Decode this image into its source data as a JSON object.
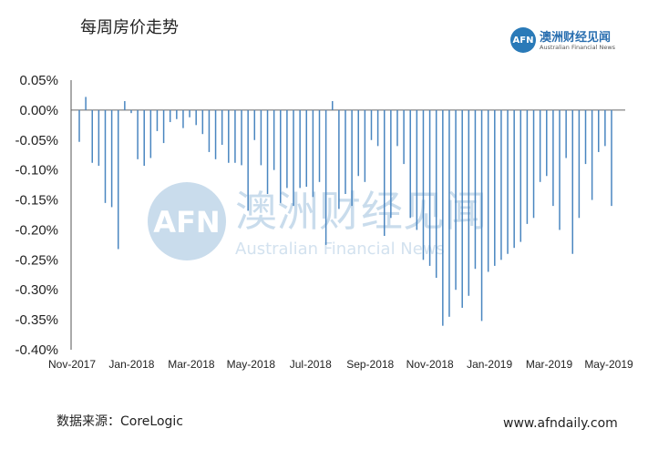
{
  "header": {
    "title": "每周房价走势"
  },
  "logo": {
    "mark": "AFN",
    "name_cn": "澳洲财经见闻",
    "name_en": "Australian Financial News"
  },
  "watermark": {
    "mark": "AFN",
    "name_cn": "澳洲财经见闻",
    "name_en": "Australian Financial News"
  },
  "footer": {
    "source": "数据来源：CoreLogic",
    "website": "www.afndaily.com"
  },
  "chart_data": {
    "type": "bar",
    "title": "每周房价走势",
    "xlabel": "",
    "ylabel": "",
    "ylim": [
      -0.4,
      0.05
    ],
    "y_ticks": [
      0.05,
      0.0,
      -0.05,
      -0.1,
      -0.15,
      -0.2,
      -0.25,
      -0.3,
      -0.35,
      -0.4
    ],
    "y_tick_labels": [
      "0.05%",
      "0.00%",
      "-0.05%",
      "-0.10%",
      "-0.15%",
      "-0.20%",
      "-0.25%",
      "-0.30%",
      "-0.35%",
      "-0.40%"
    ],
    "x_tick_labels": [
      "Nov-2017",
      "Jan-2018",
      "Mar-2018",
      "May-2018",
      "Jul-2018",
      "Sep-2018",
      "Nov-2018",
      "Jan-2019",
      "Mar-2019",
      "May-2019"
    ],
    "bar_color": "#4a86c0",
    "grid": false,
    "values": [
      -0.053,
      0.022,
      -0.088,
      -0.093,
      -0.155,
      -0.162,
      -0.232,
      0.015,
      -0.005,
      -0.082,
      -0.093,
      -0.08,
      -0.035,
      -0.055,
      -0.02,
      -0.015,
      -0.03,
      -0.012,
      -0.025,
      -0.04,
      -0.07,
      -0.082,
      -0.058,
      -0.088,
      -0.088,
      -0.092,
      -0.168,
      -0.05,
      -0.092,
      -0.14,
      -0.1,
      -0.155,
      -0.13,
      -0.16,
      -0.13,
      -0.128,
      -0.145,
      -0.12,
      -0.225,
      0.015,
      -0.165,
      -0.14,
      -0.16,
      -0.11,
      -0.12,
      -0.05,
      -0.06,
      -0.21,
      -0.18,
      -0.06,
      -0.09,
      -0.18,
      -0.2,
      -0.25,
      -0.26,
      -0.28,
      -0.36,
      -0.345,
      -0.3,
      -0.33,
      -0.31,
      -0.265,
      -0.352,
      -0.27,
      -0.26,
      -0.25,
      -0.24,
      -0.23,
      -0.22,
      -0.19,
      -0.18,
      -0.12,
      -0.11,
      -0.16,
      -0.2,
      -0.08,
      -0.24,
      -0.18,
      -0.09,
      -0.15,
      -0.07,
      -0.06,
      -0.16
    ]
  }
}
